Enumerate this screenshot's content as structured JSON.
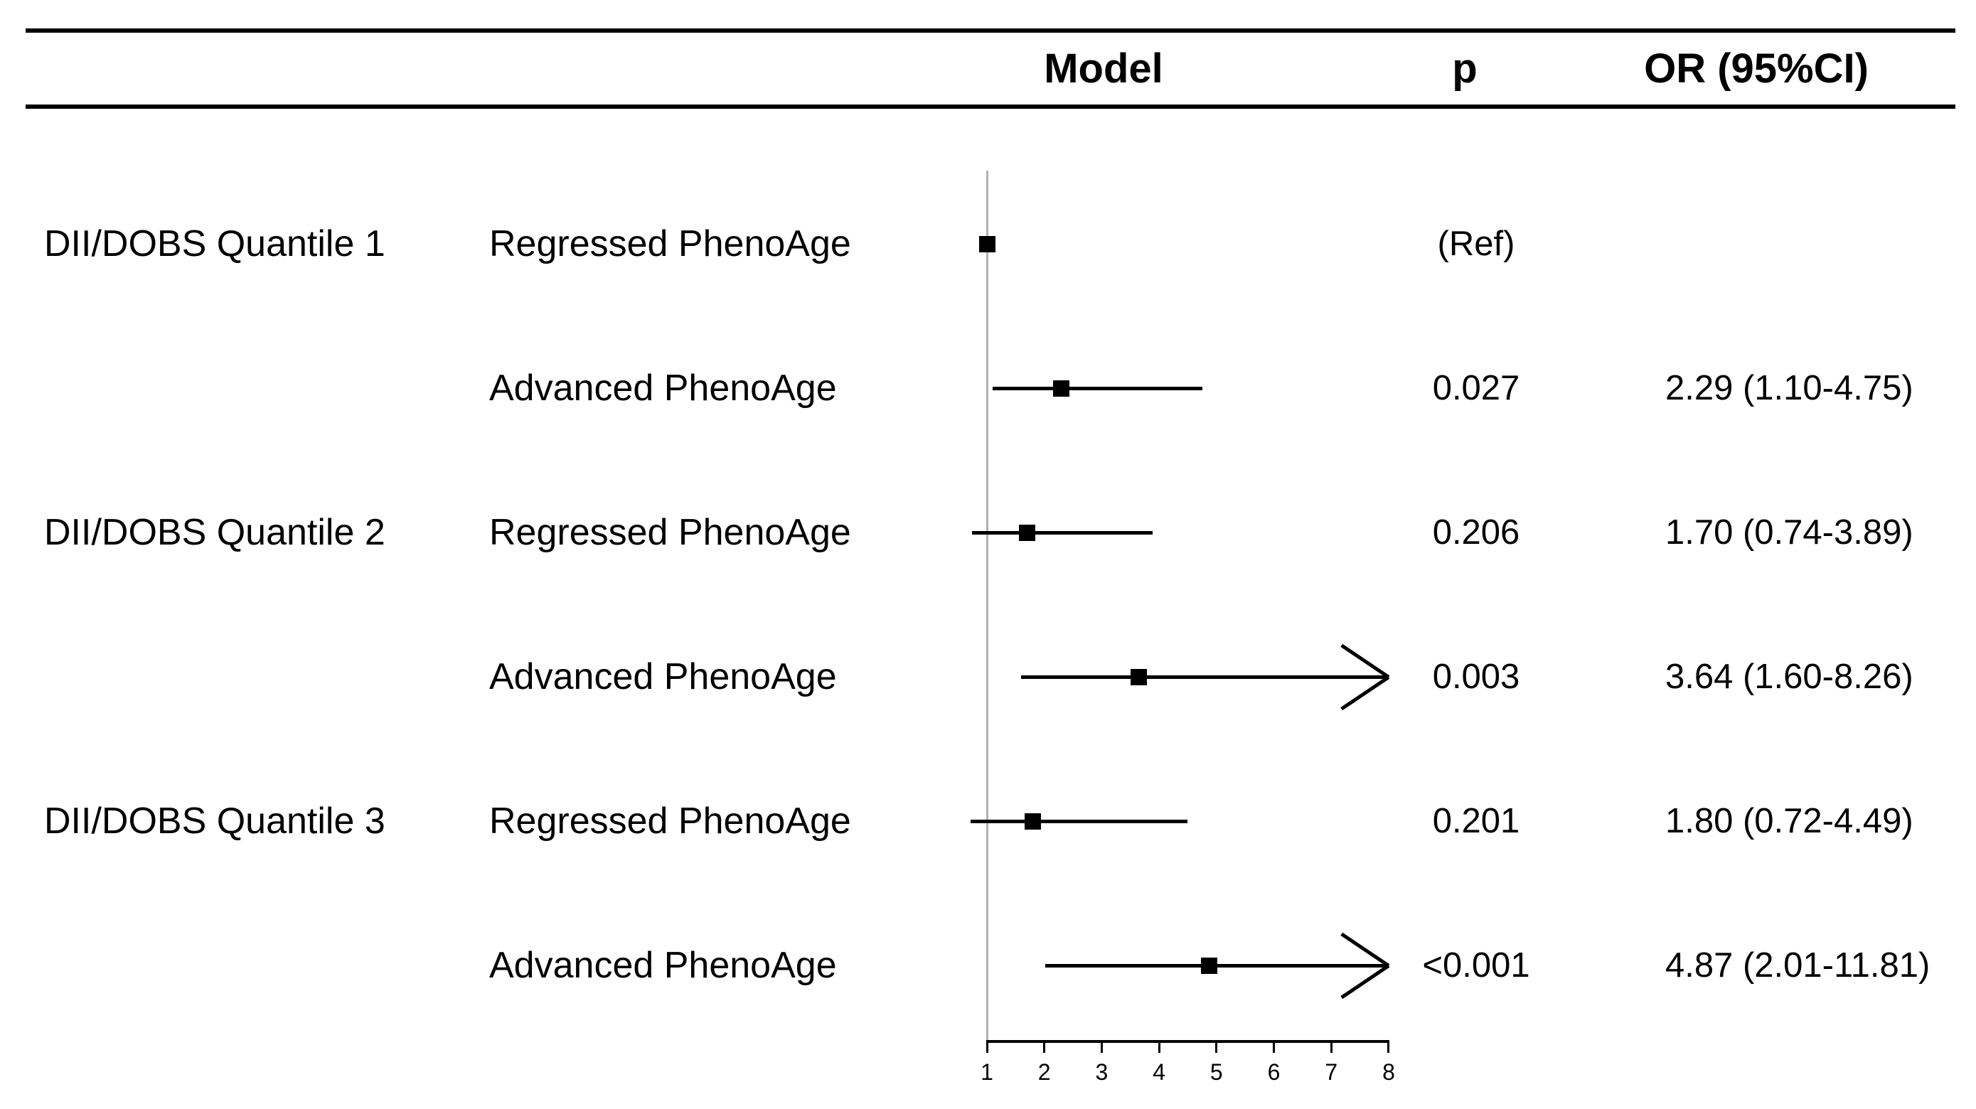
{
  "header": {
    "model": "Model",
    "p": "p",
    "or": "OR (95%CI)"
  },
  "chart_data": {
    "type": "scatter",
    "subtype": "forest-plot",
    "title": "",
    "xlabel": "",
    "xlim": [
      1,
      8
    ],
    "x_ticks": [
      "1",
      "2",
      "3",
      "4",
      "5",
      "6",
      "7",
      "8"
    ],
    "reference_value": 1,
    "rows": [
      {
        "group": "DII/DOBS Quantile 1",
        "model": "Regressed PhenoAge",
        "p": "(Ref)",
        "or_ci": "",
        "or": 1.0,
        "lo": 1.0,
        "hi": 1.0,
        "is_ref": true,
        "arrow": false
      },
      {
        "group": "",
        "model": "Advanced PhenoAge",
        "p": "0.027",
        "or_ci": "2.29 (1.10-4.75)",
        "or": 2.29,
        "lo": 1.1,
        "hi": 4.75,
        "is_ref": false,
        "arrow": false
      },
      {
        "group": "DII/DOBS Quantile 2",
        "model": "Regressed PhenoAge",
        "p": "0.206",
        "or_ci": "1.70 (0.74-3.89)",
        "or": 1.7,
        "lo": 0.74,
        "hi": 3.89,
        "is_ref": false,
        "arrow": false
      },
      {
        "group": "",
        "model": "Advanced PhenoAge",
        "p": "0.003",
        "or_ci": "3.64 (1.60-8.26)",
        "or": 3.64,
        "lo": 1.6,
        "hi": 8.26,
        "is_ref": false,
        "arrow": true
      },
      {
        "group": "DII/DOBS Quantile 3",
        "model": "Regressed PhenoAge",
        "p": "0.201",
        "or_ci": "1.80 (0.72-4.49)",
        "or": 1.8,
        "lo": 0.72,
        "hi": 4.49,
        "is_ref": false,
        "arrow": false
      },
      {
        "group": "",
        "model": "Advanced PhenoAge",
        "p": "<0.001",
        "or_ci": "4.87 (2.01-11.81)",
        "or": 4.87,
        "lo": 2.01,
        "hi": 11.81,
        "is_ref": false,
        "arrow": true
      }
    ]
  },
  "colors": {
    "marker": "#000000",
    "reference_line": "#b3b3b3",
    "rule": "#000000",
    "text": "#000000"
  }
}
